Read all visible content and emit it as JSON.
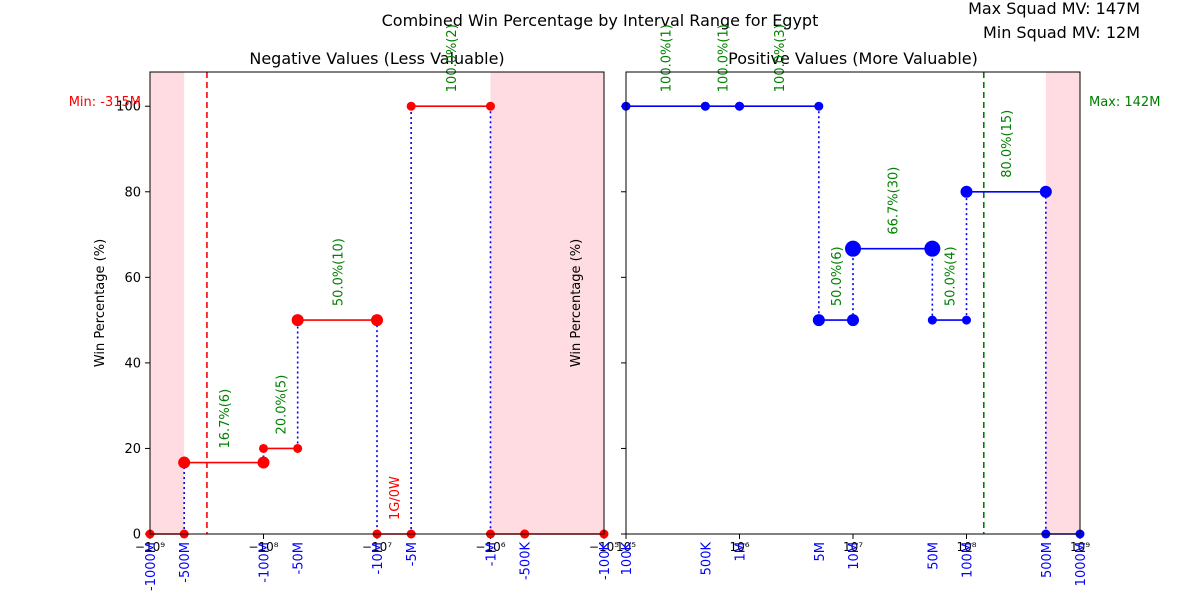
{
  "figure": {
    "title": "Combined Win Percentage by Interval Range for Egypt",
    "info_lines": [
      "Max Squad MV: 147M",
      "Min Squad MV: 12M"
    ]
  },
  "colors": {
    "negative_line": "#ff0000",
    "positive_line": "#0000ff",
    "drop_line": "#0000ff",
    "pct_label": "#008000",
    "no_data_label": "#ff0000",
    "shade": "#ffc0cb",
    "min_marker": "#ff0000",
    "max_marker": "#008000",
    "tick_label_blue": "#0000ff"
  },
  "chart_data": [
    {
      "panel": "left",
      "type": "line",
      "title": "Negative Values (Less Valuable)",
      "ylabel": "Win Percentage (%)",
      "xlabel": "",
      "xscale": "symlog",
      "xlim": [
        -1000000000,
        -100000
      ],
      "ylim": [
        0,
        108
      ],
      "grid": false,
      "yticks": [
        "0",
        "20",
        "40",
        "60",
        "80",
        "100"
      ],
      "xticks_log": [
        {
          "value": -1000000000,
          "label": "−10⁹"
        },
        {
          "value": -100000000,
          "label": "−10⁸"
        },
        {
          "value": -10000000,
          "label": "−10⁷"
        },
        {
          "value": -1000000,
          "label": "−10⁶"
        },
        {
          "value": -100000,
          "label": "−10⁵"
        }
      ],
      "interval_ticks": [
        {
          "value": -1000000000,
          "label": "-1000M"
        },
        {
          "value": -500000000,
          "label": "-500M"
        },
        {
          "value": -100000000,
          "label": "-100M"
        },
        {
          "value": -50000000,
          "label": "-50M"
        },
        {
          "value": -10000000,
          "label": "-10M"
        },
        {
          "value": -5000000,
          "label": "-5M"
        },
        {
          "value": -1000000,
          "label": "-1M"
        },
        {
          "value": -500000,
          "label": "-500K"
        },
        {
          "value": -100000,
          "label": "-100K"
        }
      ],
      "segments": [
        {
          "from": -1000000000,
          "to": -500000000,
          "pct": 0,
          "n": 0,
          "label": ""
        },
        {
          "from": -500000000,
          "to": -100000000,
          "pct": 16.7,
          "n": 6,
          "label": "16.7%(6)"
        },
        {
          "from": -100000000,
          "to": -50000000,
          "pct": 20.0,
          "n": 5,
          "label": "20.0%(5)"
        },
        {
          "from": -50000000,
          "to": -10000000,
          "pct": 50.0,
          "n": 10,
          "label": "50.0%(10)"
        },
        {
          "from": -10000000,
          "to": -5000000,
          "pct": 0,
          "n": 1,
          "label": "1G/0W"
        },
        {
          "from": -5000000,
          "to": -1000000,
          "pct": 100.0,
          "n": 2,
          "label": "100.0%(2)"
        },
        {
          "from": -1000000,
          "to": -500000,
          "pct": 0,
          "n": 0,
          "label": ""
        },
        {
          "from": -500000,
          "to": -100000,
          "pct": 0,
          "n": 0,
          "label": ""
        }
      ],
      "shaded_ranges": [
        [
          -1000000000,
          -500000000
        ],
        [
          -1000000,
          -100000
        ]
      ],
      "marker_line": {
        "value": -315000000,
        "label": "Min: -315M"
      }
    },
    {
      "panel": "right",
      "type": "line",
      "title": "Positive Values (More Valuable)",
      "ylabel": "Win Percentage (%)",
      "xlabel": "",
      "xscale": "log",
      "xlim": [
        100000,
        1000000000
      ],
      "ylim": [
        0,
        108
      ],
      "grid": false,
      "xticks_log": [
        {
          "value": 100000,
          "label": "10⁵"
        },
        {
          "value": 1000000,
          "label": "10⁶"
        },
        {
          "value": 10000000,
          "label": "10⁷"
        },
        {
          "value": 100000000,
          "label": "10⁸"
        },
        {
          "value": 1000000000,
          "label": "10⁹"
        }
      ],
      "interval_ticks": [
        {
          "value": 100000,
          "label": "100K"
        },
        {
          "value": 500000,
          "label": "500K"
        },
        {
          "value": 1000000,
          "label": "1M"
        },
        {
          "value": 5000000,
          "label": "5M"
        },
        {
          "value": 10000000,
          "label": "10M"
        },
        {
          "value": 50000000,
          "label": "50M"
        },
        {
          "value": 100000000,
          "label": "100M"
        },
        {
          "value": 500000000,
          "label": "500M"
        },
        {
          "value": 1000000000,
          "label": "1000M"
        }
      ],
      "segments": [
        {
          "from": 100000,
          "to": 500000,
          "pct": 100.0,
          "n": 1,
          "label": "100.0%(1)"
        },
        {
          "from": 500000,
          "to": 1000000,
          "pct": 100.0,
          "n": 1,
          "label": "100.0%(1)"
        },
        {
          "from": 1000000,
          "to": 5000000,
          "pct": 100.0,
          "n": 3,
          "label": "100.0%(3)"
        },
        {
          "from": 5000000,
          "to": 10000000,
          "pct": 50.0,
          "n": 6,
          "label": "50.0%(6)"
        },
        {
          "from": 10000000,
          "to": 50000000,
          "pct": 66.7,
          "n": 30,
          "label": "66.7%(30)"
        },
        {
          "from": 50000000,
          "to": 100000000,
          "pct": 50.0,
          "n": 4,
          "label": "50.0%(4)"
        },
        {
          "from": 100000000,
          "to": 500000000,
          "pct": 80.0,
          "n": 15,
          "label": "80.0%(15)"
        },
        {
          "from": 500000000,
          "to": 1000000000,
          "pct": 0,
          "n": 0,
          "label": ""
        }
      ],
      "shaded_ranges": [
        [
          500000000,
          1000000000
        ]
      ],
      "marker_line": {
        "value": 142000000,
        "label": "Max: 142M"
      }
    }
  ]
}
